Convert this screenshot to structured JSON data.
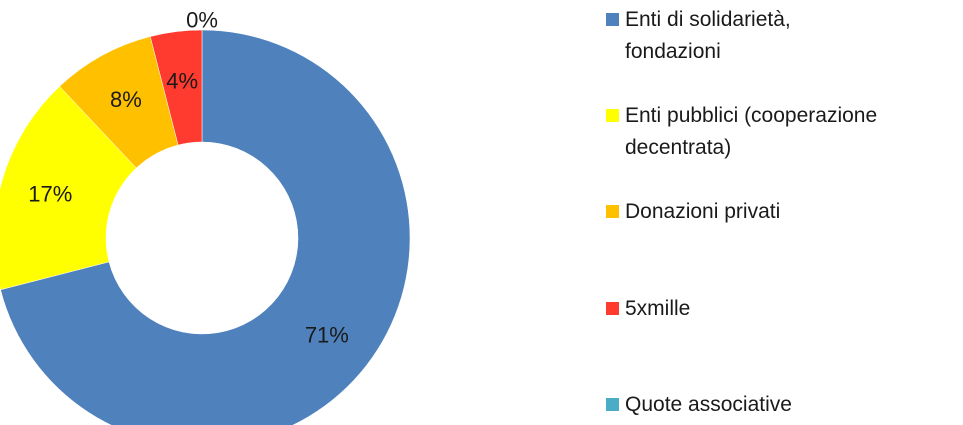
{
  "chart_data": {
    "type": "pie",
    "donut": true,
    "title": "",
    "legend_position": "right",
    "slices": [
      {
        "name": "Enti di solidarietà,\nfondazioni",
        "value": 71,
        "label": "71%",
        "color": "#4F81BD"
      },
      {
        "name": "Enti pubblici (cooperazione\ndecentrata)",
        "value": 17,
        "label": "17%",
        "color": "#FFFF00"
      },
      {
        "name": "Donazioni privati",
        "value": 8,
        "label": "8%",
        "color": "#FFC000"
      },
      {
        "name": "5xmille",
        "value": 4,
        "label": "4%",
        "color": "#FF3B2F"
      },
      {
        "name": "Quote associative",
        "value": 0,
        "label": "0%",
        "color": "#4BACC6"
      }
    ]
  }
}
